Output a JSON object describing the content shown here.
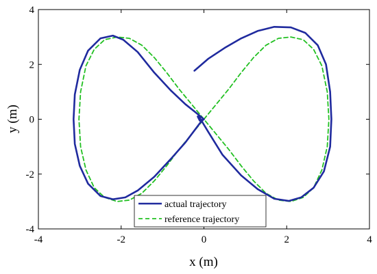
{
  "chart_data": {
    "type": "line",
    "title": "",
    "xlabel": "x (m)",
    "ylabel": "y (m)",
    "xlim": [
      -4,
      4
    ],
    "ylim": [
      -4,
      4
    ],
    "xticks": [
      -4,
      -2,
      0,
      2,
      4
    ],
    "yticks": [
      -4,
      -2,
      0,
      2,
      4
    ],
    "xtick_labels": [
      "-4",
      "-2",
      "0",
      "2",
      "4"
    ],
    "ytick_labels": [
      "-4",
      "-2",
      "0",
      "2",
      "4"
    ],
    "grid": false,
    "legend_position": "bottom-center",
    "series": [
      {
        "name": "actual trajectory",
        "color": "#1f2a9e",
        "style": "solid",
        "points": [
          [
            -0.23,
            1.77
          ],
          [
            0.1,
            2.2
          ],
          [
            0.5,
            2.6
          ],
          [
            0.9,
            2.95
          ],
          [
            1.3,
            3.22
          ],
          [
            1.7,
            3.37
          ],
          [
            2.1,
            3.35
          ],
          [
            2.45,
            3.15
          ],
          [
            2.75,
            2.7
          ],
          [
            2.95,
            2.0
          ],
          [
            3.05,
            1.0
          ],
          [
            3.08,
            0.0
          ],
          [
            3.05,
            -1.0
          ],
          [
            2.9,
            -1.9
          ],
          [
            2.65,
            -2.5
          ],
          [
            2.35,
            -2.85
          ],
          [
            2.05,
            -2.98
          ],
          [
            1.7,
            -2.9
          ],
          [
            1.3,
            -2.55
          ],
          [
            0.9,
            -2.05
          ],
          [
            0.45,
            -1.3
          ],
          [
            0.1,
            -0.45
          ],
          [
            -0.1,
            0.05
          ],
          [
            -0.15,
            0.1
          ],
          [
            -0.1,
            -0.05
          ],
          [
            0.0,
            0.0
          ],
          [
            -0.2,
            0.25
          ],
          [
            -0.45,
            0.55
          ],
          [
            -0.8,
            1.05
          ],
          [
            -1.2,
            1.7
          ],
          [
            -1.6,
            2.45
          ],
          [
            -1.95,
            2.9
          ],
          [
            -2.2,
            3.05
          ],
          [
            -2.5,
            2.95
          ],
          [
            -2.8,
            2.5
          ],
          [
            -3.0,
            1.8
          ],
          [
            -3.12,
            0.9
          ],
          [
            -3.15,
            0.0
          ],
          [
            -3.12,
            -0.9
          ],
          [
            -3.0,
            -1.7
          ],
          [
            -2.8,
            -2.35
          ],
          [
            -2.5,
            -2.8
          ],
          [
            -2.2,
            -2.92
          ],
          [
            -1.9,
            -2.85
          ],
          [
            -1.6,
            -2.6
          ],
          [
            -1.2,
            -2.1
          ],
          [
            -0.8,
            -1.45
          ],
          [
            -0.45,
            -0.85
          ],
          [
            -0.2,
            -0.35
          ],
          [
            -0.05,
            -0.05
          ],
          [
            0.0,
            0.0
          ]
        ]
      },
      {
        "name": "reference trajectory",
        "color": "#22c022",
        "style": "dashed",
        "points": [
          [
            0.0,
            0.0
          ],
          [
            0.3,
            0.55
          ],
          [
            0.6,
            1.1
          ],
          [
            0.9,
            1.7
          ],
          [
            1.2,
            2.25
          ],
          [
            1.5,
            2.7
          ],
          [
            1.8,
            2.95
          ],
          [
            2.1,
            3.0
          ],
          [
            2.4,
            2.9
          ],
          [
            2.65,
            2.55
          ],
          [
            2.85,
            1.95
          ],
          [
            2.98,
            1.0
          ],
          [
            3.02,
            0.0
          ],
          [
            2.98,
            -1.0
          ],
          [
            2.85,
            -1.85
          ],
          [
            2.65,
            -2.5
          ],
          [
            2.4,
            -2.85
          ],
          [
            2.1,
            -3.0
          ],
          [
            1.8,
            -2.95
          ],
          [
            1.5,
            -2.7
          ],
          [
            1.2,
            -2.25
          ],
          [
            0.9,
            -1.7
          ],
          [
            0.6,
            -1.1
          ],
          [
            0.3,
            -0.55
          ],
          [
            0.0,
            0.0
          ],
          [
            -0.3,
            0.55
          ],
          [
            -0.6,
            1.1
          ],
          [
            -0.9,
            1.7
          ],
          [
            -1.2,
            2.25
          ],
          [
            -1.5,
            2.7
          ],
          [
            -1.8,
            2.95
          ],
          [
            -2.1,
            3.0
          ],
          [
            -2.4,
            2.9
          ],
          [
            -2.65,
            2.55
          ],
          [
            -2.85,
            1.95
          ],
          [
            -2.98,
            1.0
          ],
          [
            -3.02,
            0.0
          ],
          [
            -2.98,
            -1.0
          ],
          [
            -2.85,
            -1.85
          ],
          [
            -2.65,
            -2.5
          ],
          [
            -2.4,
            -2.85
          ],
          [
            -2.1,
            -3.0
          ],
          [
            -1.8,
            -2.95
          ],
          [
            -1.5,
            -2.7
          ],
          [
            -1.2,
            -2.25
          ],
          [
            -0.9,
            -1.7
          ],
          [
            -0.6,
            -1.1
          ],
          [
            -0.3,
            -0.55
          ],
          [
            0.0,
            0.0
          ]
        ]
      }
    ]
  }
}
